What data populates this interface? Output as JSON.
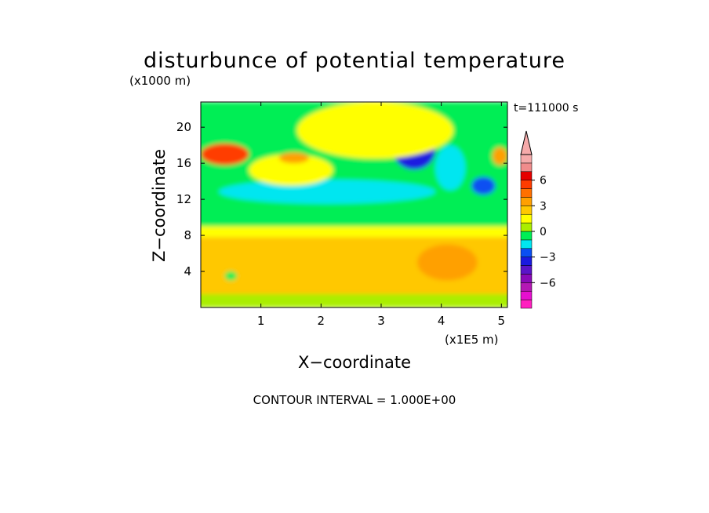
{
  "chart_data": {
    "type": "heatmap",
    "title": "disturbunce of potential temperature",
    "y_unit_label": "(x1000 m)",
    "x_unit_label": "(x1E5 m)",
    "xlabel": "X−coordinate",
    "ylabel": "Z−coordinate",
    "time_label": "t=111000 s",
    "footer": "CONTOUR INTERVAL = 1.000E+00",
    "xlim": [
      0,
      5.1
    ],
    "ylim": [
      0,
      22.8
    ],
    "x_ticks": [
      1,
      2,
      3,
      4,
      5
    ],
    "y_ticks": [
      4,
      8,
      12,
      16,
      20
    ],
    "colorbar": {
      "tick_labels": [
        {
          "value": 6,
          "text": "6"
        },
        {
          "value": 3,
          "text": "3"
        },
        {
          "value": 0,
          "text": "0"
        },
        {
          "value": -3,
          "text": "−3"
        },
        {
          "value": -6,
          "text": "−6"
        }
      ],
      "levels": [
        {
          "from": -9,
          "to": -8,
          "color": "#ff1fbf"
        },
        {
          "from": -8,
          "to": -7,
          "color": "#e60fd0"
        },
        {
          "from": -7,
          "to": -6,
          "color": "#b418b4"
        },
        {
          "from": -6,
          "to": -5,
          "color": "#8a0ab8"
        },
        {
          "from": -5,
          "to": -4,
          "color": "#5a14c8"
        },
        {
          "from": -4,
          "to": -3,
          "color": "#1a1ae0"
        },
        {
          "from": -3,
          "to": -2,
          "color": "#0a4ff2"
        },
        {
          "from": -2,
          "to": -1,
          "color": "#00e6f0"
        },
        {
          "from": -1,
          "to": 0,
          "color": "#00ee55"
        },
        {
          "from": 0,
          "to": 1,
          "color": "#aaee00"
        },
        {
          "from": 1,
          "to": 2,
          "color": "#ffff00"
        },
        {
          "from": 2,
          "to": 3,
          "color": "#ffc800"
        },
        {
          "from": 3,
          "to": 4,
          "color": "#ffa000"
        },
        {
          "from": 4,
          "to": 5,
          "color": "#ff7000"
        },
        {
          "from": 5,
          "to": 6,
          "color": "#ff3c00"
        },
        {
          "from": 6,
          "to": 7,
          "color": "#e60000"
        },
        {
          "from": 7,
          "to": 8,
          "color": "#f08c8c"
        },
        {
          "from": 8,
          "to": 9,
          "color": "#f5aaaa"
        }
      ],
      "overflow_arrow_color": "#f5aaaa"
    },
    "field_regions": [
      {
        "value": 2.5,
        "x": [
          0.0,
          5.1
        ],
        "z": [
          0.0,
          7.8
        ],
        "note": "lower layer mostly orange"
      },
      {
        "value": 0.5,
        "x": [
          0.0,
          5.1
        ],
        "z": [
          0.0,
          1.5
        ],
        "note": "bottom band yellow"
      },
      {
        "value": 1.5,
        "x": [
          0.0,
          5.1
        ],
        "z": [
          7.8,
          9.0
        ],
        "note": "yellow band"
      },
      {
        "value": -0.5,
        "x": [
          0.0,
          5.1
        ],
        "z": [
          9.0,
          22.8
        ],
        "note": "upper layer green"
      },
      {
        "value": -1.5,
        "x": [
          0.3,
          3.9
        ],
        "z": [
          11.5,
          14.2
        ],
        "note": "cyan band"
      },
      {
        "value": 1.0,
        "x": [
          0.8,
          2.2
        ],
        "z": [
          13.5,
          17.0
        ],
        "note": "yellow blob"
      },
      {
        "value": 5.5,
        "x": [
          0.0,
          0.8
        ],
        "z": [
          15.8,
          18.2
        ],
        "note": "warm anomaly left"
      },
      {
        "value": 3.5,
        "x": [
          1.3,
          1.8
        ],
        "z": [
          16.0,
          17.2
        ],
        "note": "orange patch"
      },
      {
        "value": -4.0,
        "x": [
          3.2,
          3.9
        ],
        "z": [
          15.3,
          19.5
        ],
        "note": "blue anomaly"
      },
      {
        "value": -3.0,
        "x": [
          4.5,
          4.9
        ],
        "z": [
          12.5,
          14.5
        ],
        "note": "blue patch"
      },
      {
        "value": 3.0,
        "x": [
          4.85,
          5.1
        ],
        "z": [
          15.8,
          17.8
        ],
        "note": "orange patch right"
      },
      {
        "value": -2.0,
        "x": [
          3.9,
          4.4
        ],
        "z": [
          13.0,
          18.0
        ],
        "note": "cyan streaks"
      },
      {
        "value": 1.0,
        "x": [
          1.6,
          4.2
        ],
        "z": [
          16.5,
          22.8
        ],
        "note": "yellow diagonal streaks"
      },
      {
        "value": 3.5,
        "x": [
          3.6,
          4.6
        ],
        "z": [
          3.0,
          7.0
        ],
        "note": "darker orange mottling"
      },
      {
        "value": -0.5,
        "x": [
          0.4,
          0.6
        ],
        "z": [
          3.0,
          4.0
        ],
        "note": "green spots"
      }
    ]
  }
}
